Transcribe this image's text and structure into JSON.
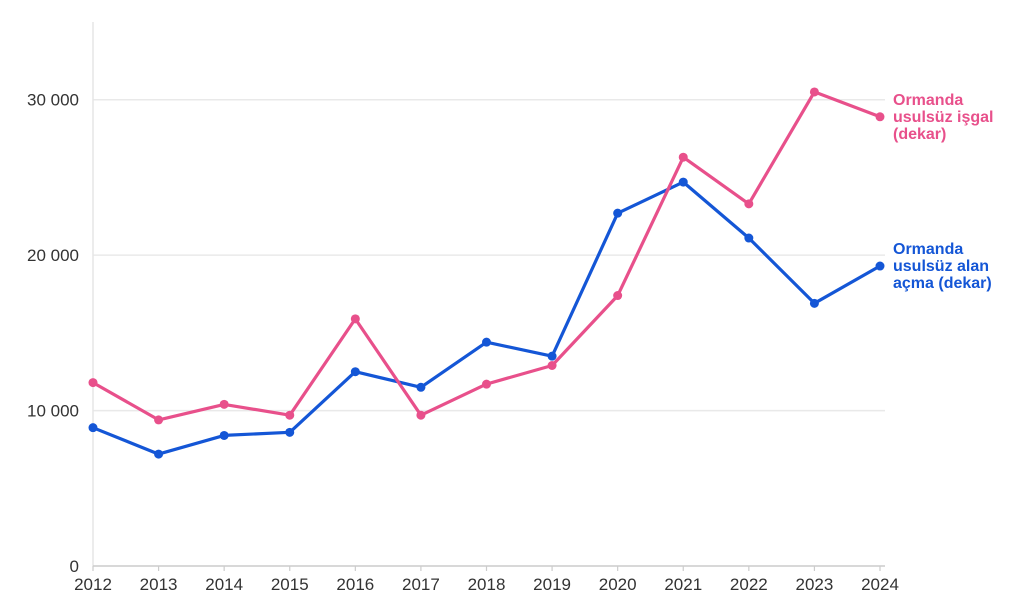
{
  "chart_data": {
    "type": "line",
    "title": "",
    "xlabel": "",
    "ylabel": "",
    "ylim": [
      0,
      35000
    ],
    "grid": true,
    "legend": "inline-right",
    "x": [
      2012,
      2013,
      2014,
      2015,
      2016,
      2017,
      2018,
      2019,
      2020,
      2021,
      2022,
      2023,
      2024
    ],
    "x_tick_labels": [
      "2012",
      "2013",
      "2014",
      "2015",
      "2016",
      "2017",
      "2018",
      "2019",
      "2020",
      "2021",
      "2022",
      "2023",
      "2024"
    ],
    "y_ticks": [
      0,
      10000,
      20000,
      30000
    ],
    "y_tick_labels": [
      "0",
      "10 000",
      "20 000",
      "30 000"
    ],
    "series": [
      {
        "name": "Ormanda usulsüz işgal (dekar)",
        "label_lines": [
          "Ormanda",
          "usulsüz işgal",
          "(dekar)"
        ],
        "color": "#e8508b",
        "values": [
          11800,
          9400,
          10400,
          9700,
          15900,
          9700,
          11700,
          12900,
          17400,
          26300,
          23300,
          30500,
          28900
        ]
      },
      {
        "name": "Ormanda usulsüz alan açma (dekar)",
        "label_lines": [
          "Ormanda",
          "usulsüz alan",
          "açma (dekar)"
        ],
        "color": "#1456d6",
        "values": [
          8900,
          7200,
          8400,
          8600,
          12500,
          11500,
          14400,
          13500,
          22700,
          24700,
          21100,
          16900,
          19300
        ]
      }
    ]
  }
}
